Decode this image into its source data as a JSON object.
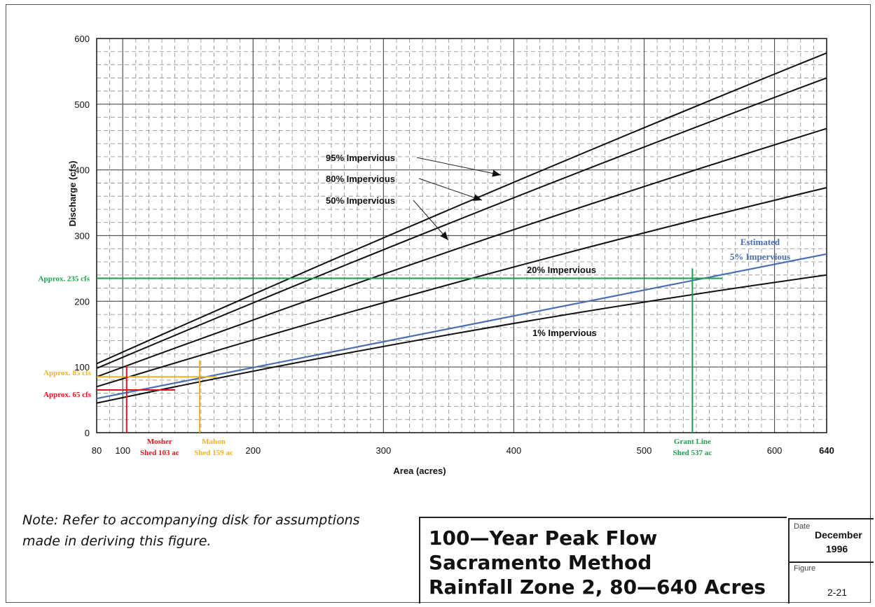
{
  "chart_data": {
    "type": "line",
    "xlabel": "Area (acres)",
    "ylabel": "Discharge (cfs)",
    "xlim": [
      80,
      640
    ],
    "ylim": [
      0,
      600
    ],
    "x_ticks": [
      80,
      100,
      200,
      300,
      400,
      500,
      600,
      640
    ],
    "y_ticks": [
      0,
      100,
      200,
      300,
      400,
      500,
      600
    ],
    "grid": true,
    "series": [
      {
        "name": "95% Impervious",
        "x": [
          80,
          640
        ],
        "y": [
          105,
          578
        ],
        "color": "#111111"
      },
      {
        "name": "80% Impervious",
        "x": [
          80,
          640
        ],
        "y": [
          98,
          540
        ],
        "color": "#111111"
      },
      {
        "name": "50% Impervious",
        "x": [
          80,
          640
        ],
        "y": [
          85,
          463
        ],
        "color": "#111111"
      },
      {
        "name": "20% Impervious",
        "x": [
          80,
          640
        ],
        "y": [
          70,
          373
        ],
        "color": "#111111"
      },
      {
        "name": "1% Impervious",
        "x": [
          80,
          640
        ],
        "y": [
          45,
          240
        ],
        "color": "#111111"
      },
      {
        "name": "Estimated 5% Impervious",
        "x": [
          80,
          640
        ],
        "y": [
          52,
          272
        ],
        "color": "#4a6fb0"
      }
    ],
    "curve_labels": {
      "p95": "95% Impervious",
      "p80": "80% Impervious",
      "p50": "50% Impervious",
      "p20": "20% Impervious",
      "p1": "1% Impervious",
      "est_line1": "Estimated",
      "est_line2": "5% Impervious"
    },
    "annotations": {
      "approx235": {
        "text": "Approx. 235 cfs",
        "value": 235,
        "color": "#1e9e4a"
      },
      "approx85": {
        "text": "Approx. 85 cfs",
        "value": 85,
        "color": "#f0b41c"
      },
      "approx65": {
        "text": "Approx. 65 cfs",
        "value": 65,
        "color": "#e0141e"
      },
      "mosher": {
        "line1": "Mosher",
        "line2": "Shed 103 ac",
        "value": 103,
        "color": "#e0141e"
      },
      "mahon": {
        "line1": "Mahon",
        "line2": "Shed 159 ac",
        "value": 159,
        "color": "#f0b41c"
      },
      "grant": {
        "line1": "Grant Line",
        "line2": "Shed 537 ac",
        "value": 537,
        "color": "#1e9e4a"
      }
    }
  },
  "note": {
    "line1": "Note: Refer to accompanying disk for assumptions",
    "line2": "made in deriving this figure."
  },
  "title_block": {
    "line1": "100—Year Peak Flow",
    "line2": "Sacramento Method",
    "line3": "Rainfall Zone 2, 80—640 Acres",
    "date_label": "Date",
    "date_value": "December",
    "date_year": "1996",
    "figure_label": "Figure",
    "figure_value": "2-21"
  }
}
